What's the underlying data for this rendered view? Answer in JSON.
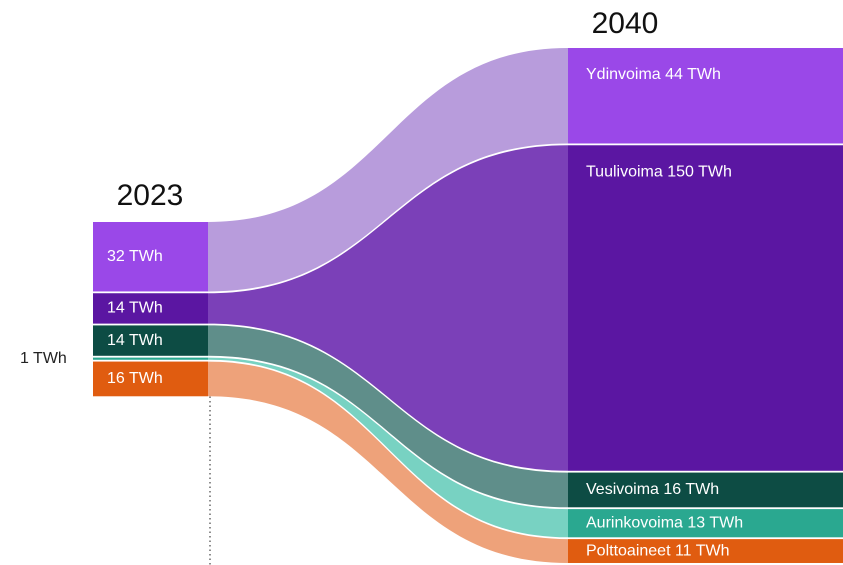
{
  "chart_data": {
    "type": "sankey",
    "categories": [
      "2023",
      "2040"
    ],
    "series": [
      {
        "values": [
          32,
          44
        ],
        "value_labels": [
          "32 TWh",
          "Ydinvoima 44 TWh"
        ],
        "color": "#9a48e8",
        "flow_color": "#b89cdc"
      },
      {
        "values": [
          14,
          150
        ],
        "value_labels": [
          "14 TWh",
          "Tuulivoima 150 TWh"
        ],
        "color": "#5b16a2",
        "flow_color": "#7b40b8"
      },
      {
        "values": [
          14,
          16
        ],
        "value_labels": [
          "14 TWh",
          "Vesivoima 16 TWh"
        ],
        "color": "#0d4c44",
        "flow_color": "#5f8e8a"
      },
      {
        "values": [
          1,
          13
        ],
        "value_labels": [
          "1 TWh",
          "Aurinkovoima 13 TWh"
        ],
        "color": "#2aa890",
        "flow_color": "#78d2c2"
      },
      {
        "values": [
          16,
          11
        ],
        "value_labels": [
          "16 TWh",
          "Polttoaineet 11 TWh"
        ],
        "color": "#e05c10",
        "flow_color": "#eea27a"
      }
    ]
  }
}
